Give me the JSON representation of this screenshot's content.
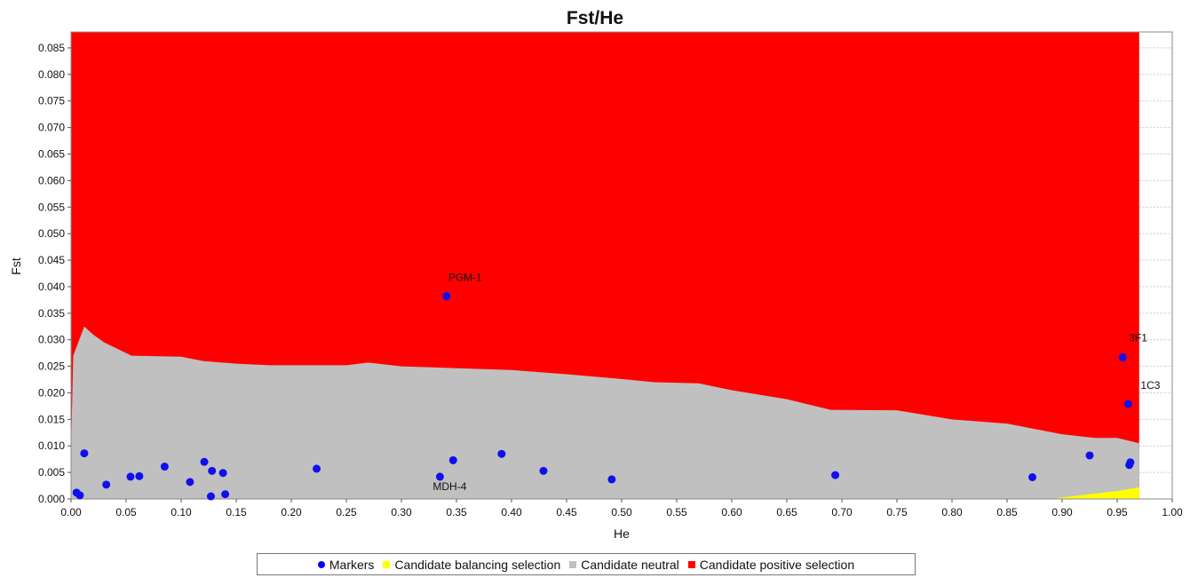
{
  "chart_data": {
    "type": "scatter",
    "title": "Fst/He",
    "xlabel": "He",
    "ylabel": "Fst",
    "xlim": [
      0.0,
      1.0
    ],
    "ylim": [
      0.0,
      0.088
    ],
    "xticks": [
      "0.00",
      "0.05",
      "0.10",
      "0.15",
      "0.20",
      "0.25",
      "0.30",
      "0.35",
      "0.40",
      "0.45",
      "0.50",
      "0.55",
      "0.60",
      "0.65",
      "0.70",
      "0.75",
      "0.80",
      "0.85",
      "0.90",
      "0.95",
      "1.00"
    ],
    "yticks": [
      "0.000",
      "0.005",
      "0.010",
      "0.015",
      "0.020",
      "0.025",
      "0.030",
      "0.035",
      "0.040",
      "0.045",
      "0.050",
      "0.055",
      "0.060",
      "0.065",
      "0.070",
      "0.075",
      "0.080",
      "0.085"
    ],
    "grid": false,
    "legend_position": "bottom",
    "legend": [
      {
        "label": "Markers",
        "color": "#0000ff",
        "shape": "circle"
      },
      {
        "label": "Candidate balancing selection",
        "color": "#ffff00",
        "shape": "square"
      },
      {
        "label": "Candidate neutral",
        "color": "#c0c0c0",
        "shape": "square"
      },
      {
        "label": "Candidate positive selection",
        "color": "#ff0000",
        "shape": "square"
      }
    ],
    "regions": {
      "x_max": 0.97,
      "positive_color": "#ff0000",
      "neutral_color": "#c0c0c0",
      "balancing_color": "#ffff00",
      "neutral_upper": [
        [
          0.0,
          0.009
        ],
        [
          0.002,
          0.027
        ],
        [
          0.012,
          0.0325
        ],
        [
          0.02,
          0.031
        ],
        [
          0.03,
          0.0295
        ],
        [
          0.045,
          0.028
        ],
        [
          0.055,
          0.027
        ],
        [
          0.1,
          0.0268
        ],
        [
          0.12,
          0.026
        ],
        [
          0.15,
          0.0255
        ],
        [
          0.18,
          0.0252
        ],
        [
          0.25,
          0.0252
        ],
        [
          0.27,
          0.0257
        ],
        [
          0.3,
          0.025
        ],
        [
          0.4,
          0.0243
        ],
        [
          0.45,
          0.0235
        ],
        [
          0.5,
          0.0226
        ],
        [
          0.53,
          0.022
        ],
        [
          0.57,
          0.0218
        ],
        [
          0.6,
          0.0205
        ],
        [
          0.65,
          0.0188
        ],
        [
          0.69,
          0.0168
        ],
        [
          0.75,
          0.0167
        ],
        [
          0.8,
          0.015
        ],
        [
          0.85,
          0.0142
        ],
        [
          0.9,
          0.0122
        ],
        [
          0.93,
          0.0115
        ],
        [
          0.95,
          0.0115
        ],
        [
          0.97,
          0.0105
        ]
      ],
      "balancing_upper": [
        [
          0.89,
          0.0
        ],
        [
          0.92,
          0.0008
        ],
        [
          0.95,
          0.0015
        ],
        [
          0.97,
          0.0022
        ]
      ]
    },
    "points": [
      {
        "x": 0.005,
        "y": 0.0012
      },
      {
        "x": 0.008,
        "y": 0.0007
      },
      {
        "x": 0.012,
        "y": 0.0086
      },
      {
        "x": 0.032,
        "y": 0.0027
      },
      {
        "x": 0.054,
        "y": 0.0042
      },
      {
        "x": 0.062,
        "y": 0.0043
      },
      {
        "x": 0.085,
        "y": 0.0061
      },
      {
        "x": 0.108,
        "y": 0.0032
      },
      {
        "x": 0.121,
        "y": 0.007
      },
      {
        "x": 0.127,
        "y": 0.0005
      },
      {
        "x": 0.128,
        "y": 0.0053
      },
      {
        "x": 0.138,
        "y": 0.0049
      },
      {
        "x": 0.14,
        "y": 0.0009
      },
      {
        "x": 0.223,
        "y": 0.0057
      },
      {
        "x": 0.335,
        "y": 0.0042
      },
      {
        "x": 0.341,
        "y": 0.0382
      },
      {
        "x": 0.347,
        "y": 0.0073
      },
      {
        "x": 0.391,
        "y": 0.0085
      },
      {
        "x": 0.429,
        "y": 0.0053
      },
      {
        "x": 0.491,
        "y": 0.0037
      },
      {
        "x": 0.694,
        "y": 0.0045
      },
      {
        "x": 0.873,
        "y": 0.0041
      },
      {
        "x": 0.925,
        "y": 0.0082
      },
      {
        "x": 0.955,
        "y": 0.0267
      },
      {
        "x": 0.96,
        "y": 0.0179
      },
      {
        "x": 0.961,
        "y": 0.0064
      },
      {
        "x": 0.962,
        "y": 0.0069
      }
    ],
    "annotations": [
      {
        "text": "PGM-1",
        "x": 0.341,
        "y": 0.0382
      },
      {
        "text": "MDH-4",
        "x": 0.335,
        "y": 0.0042
      },
      {
        "text": "3F1",
        "x": 0.955,
        "y": 0.0267
      },
      {
        "text": "1C3",
        "x": 0.96,
        "y": 0.0179
      }
    ]
  }
}
